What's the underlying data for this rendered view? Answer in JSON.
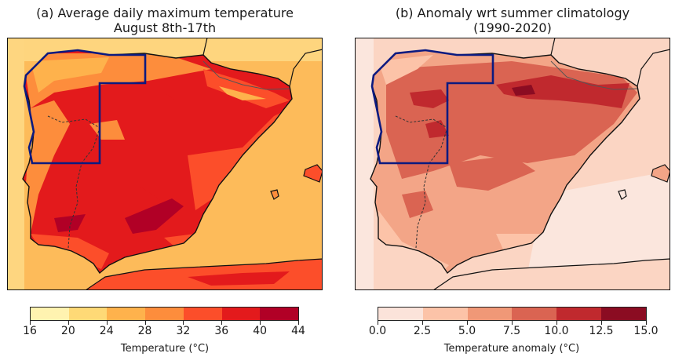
{
  "panels": [
    {
      "title_line1": "(a) Average daily maximum temperature",
      "title_line2": "August 8th-17th",
      "colorbar": {
        "label": "Temperature (°C)",
        "ticks": [
          "16",
          "20",
          "24",
          "28",
          "32",
          "36",
          "40",
          "44"
        ],
        "colors": [
          "#fff3b0",
          "#fed976",
          "#feb24c",
          "#fd8d3c",
          "#fc4e2a",
          "#e31a1c",
          "#b10026"
        ]
      },
      "sea_color": "#fdbb5a",
      "land_base_color": "#e82b22"
    },
    {
      "title_line1": "(b) Anomaly wrt summer climatology",
      "title_line2": "(1990-2020)",
      "colorbar": {
        "label": "Temperature anomaly (°C)",
        "ticks": [
          "0.0",
          "2.5",
          "5.0",
          "7.5",
          "10.0",
          "12.5",
          "15.0"
        ],
        "colors": [
          "#fbe3da",
          "#fcc3a8",
          "#f09877",
          "#da6452",
          "#c0292e",
          "#8b0c22"
        ]
      },
      "sea_color": "#fbd5c3",
      "land_base_color": "#f3a587"
    }
  ],
  "chart_data": [
    {
      "type": "heatmap",
      "title": "(a) Average daily maximum temperature August 8th-17th",
      "region": "Iberian Peninsula",
      "colorbar_label": "Temperature (°C)",
      "levels": [
        16,
        20,
        24,
        28,
        32,
        36,
        40,
        44
      ],
      "value_range": [
        16,
        44
      ],
      "highlighted_box": "NW Iberia (Galicia / N Portugal) outlined in navy",
      "summary": "Interior Spain and Portugal 36-44 °C (peaks in Guadalquivir valley and central plateau), coasts and sea 24-32 °C, Pyrenees 24-28 °C"
    },
    {
      "type": "heatmap",
      "title": "(b) Anomaly wrt summer climatology (1990-2020)",
      "region": "Iberian Peninsula",
      "colorbar_label": "Temperature anomaly (°C)",
      "levels": [
        0.0,
        2.5,
        5.0,
        7.5,
        10.0,
        12.5,
        15.0
      ],
      "value_range": [
        0.0,
        15.0
      ],
      "highlighted_box": "NW Iberia (Galicia / N Portugal) outlined in navy",
      "summary": "Largest anomalies (10-15 °C) across northern Spain / Cantabrian range and NW; 5-10 °C in most of the interior; 0-5 °C over the sea and southern coasts"
    }
  ]
}
